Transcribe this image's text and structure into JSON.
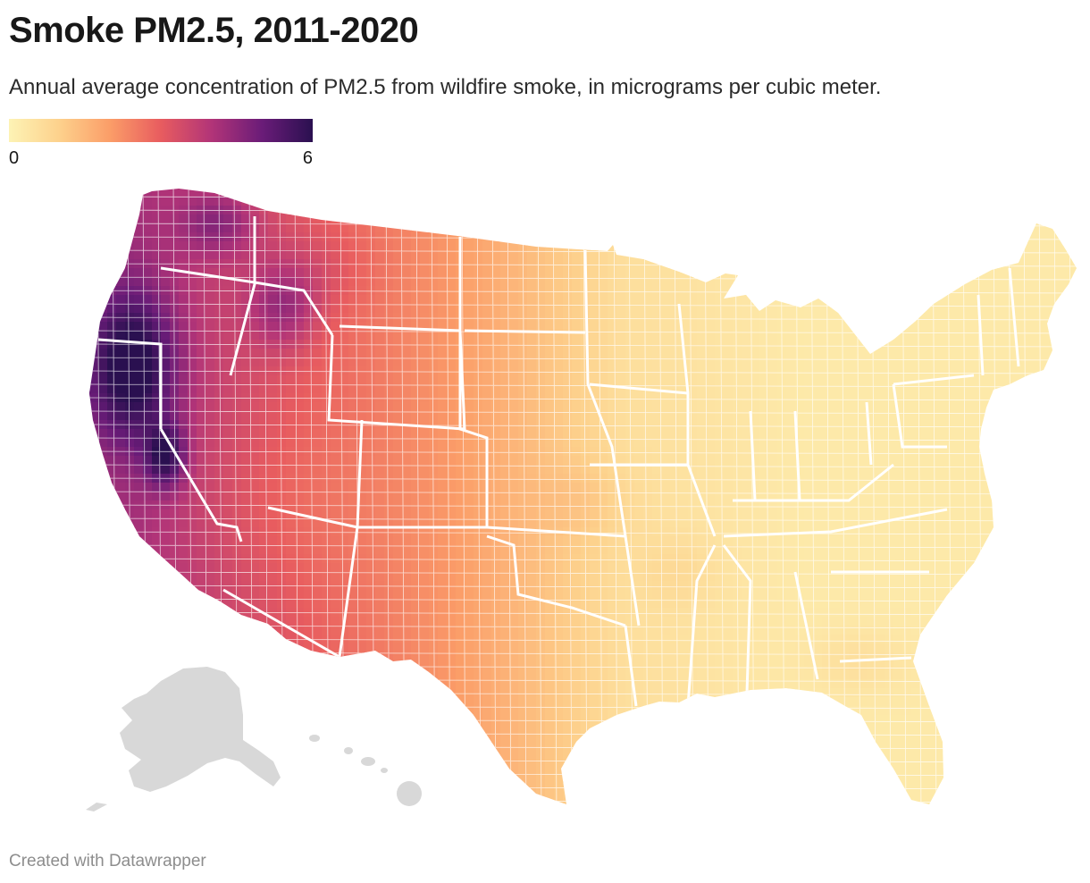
{
  "title": "Smoke PM2.5, 2011-2020",
  "subtitle": "Annual average concentration of PM2.5 from wildfire smoke, in micrograms per cubic meter.",
  "legend": {
    "min": "0",
    "max": "6",
    "colors": [
      "#fdf3b5",
      "#fdd18c",
      "#fb9d68",
      "#e85c5f",
      "#b23478",
      "#6a1c78",
      "#2a1050"
    ]
  },
  "map": {
    "missing_color": "#d8d8d8",
    "border_color": "#ffffff"
  },
  "credit": "Created with Datawrapper"
}
